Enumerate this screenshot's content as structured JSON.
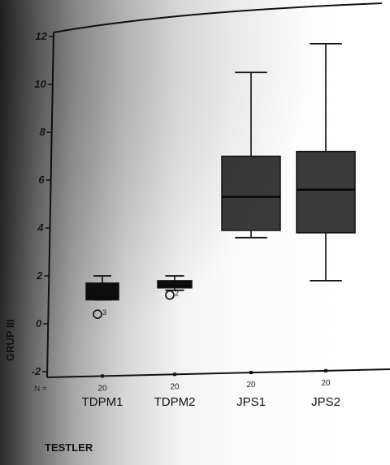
{
  "chart_data": {
    "type": "box",
    "title": "",
    "xlabel": "TESTLER",
    "ylabel": "GRUP III",
    "ylim": [
      -2,
      12
    ],
    "yticks": [
      -2,
      0,
      2,
      4,
      6,
      8,
      10,
      12
    ],
    "ytick_labels": [
      "-2",
      "0",
      "2",
      "4",
      "6",
      "8",
      "10",
      "12"
    ],
    "categories": [
      "TDPM1",
      "TDPM2",
      "JPS1",
      "JPS2"
    ],
    "n_label": "N =",
    "n_values": [
      "20",
      "20",
      "20",
      "20"
    ],
    "boxes": [
      {
        "category": "TDPM1",
        "whisker_low": 1.0,
        "q1": 1.0,
        "median": 1.1,
        "q3": 1.7,
        "whisker_high": 2.0,
        "outliers": [
          {
            "value": 0.4,
            "label": "3"
          }
        ]
      },
      {
        "category": "TDPM2",
        "whisker_low": 1.4,
        "q1": 1.5,
        "median": 1.6,
        "q3": 1.8,
        "whisker_high": 2.0,
        "outliers": [
          {
            "value": 1.2,
            "label": "2"
          }
        ]
      },
      {
        "category": "JPS1",
        "whisker_low": 3.6,
        "q1": 3.9,
        "median": 5.3,
        "q3": 7.0,
        "whisker_high": 10.5,
        "outliers": []
      },
      {
        "category": "JPS2",
        "whisker_low": 1.8,
        "q1": 3.8,
        "median": 5.6,
        "q3": 7.2,
        "whisker_high": 11.7,
        "outliers": []
      }
    ],
    "grid": false,
    "legend": "none"
  }
}
